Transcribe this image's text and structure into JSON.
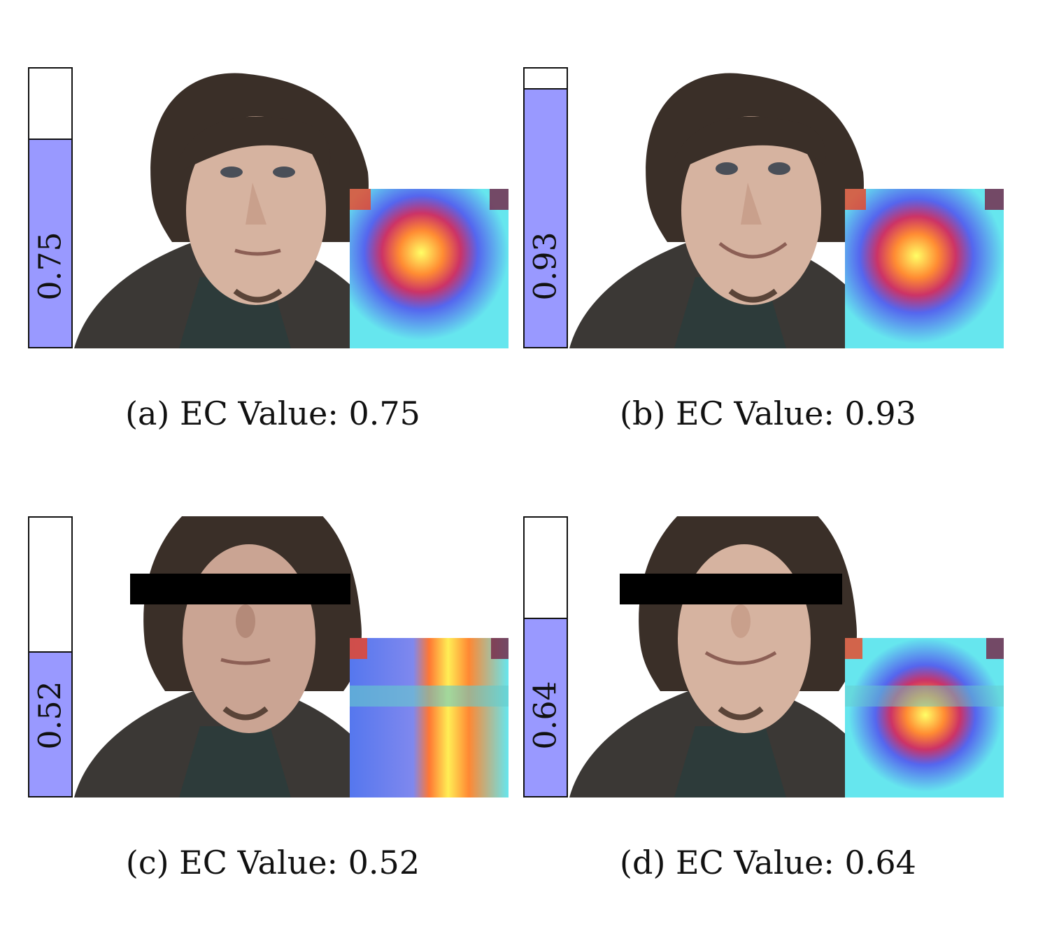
{
  "panels": [
    {
      "letter": "(a)",
      "caption": "(a) EC Value: 0.75",
      "bar_label": "0.75",
      "ec_value": 0.75,
      "occluded": false,
      "heat": "nose"
    },
    {
      "letter": "(b)",
      "caption": "(b) EC Value: 0.93",
      "bar_label": "0.93",
      "ec_value": 0.93,
      "occluded": false,
      "heat": "nose"
    },
    {
      "letter": "(c)",
      "caption": "(c) EC Value: 0.52",
      "bar_label": "0.52",
      "ec_value": 0.52,
      "occluded": true,
      "heat": "split"
    },
    {
      "letter": "(d)",
      "caption": "(d) EC Value: 0.64",
      "bar_label": "0.64",
      "ec_value": 0.64,
      "occluded": true,
      "heat": "mouth"
    }
  ],
  "colors": {
    "bar_fill": "#9999ff",
    "bar_border": "#111111",
    "occlusion": "#000000"
  }
}
